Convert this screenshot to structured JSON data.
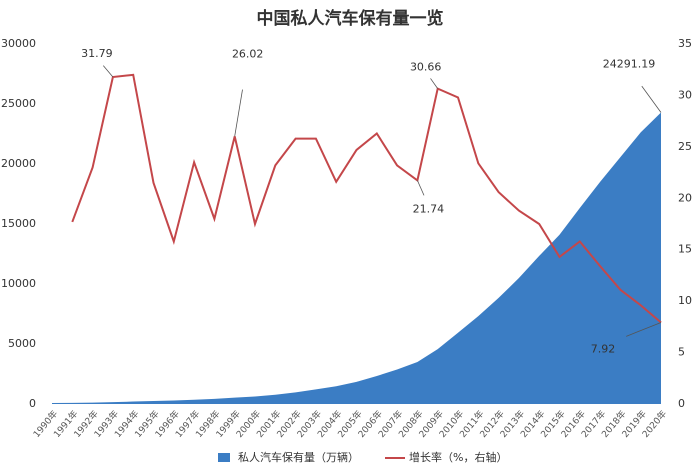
{
  "chart_data": {
    "type": "area-line",
    "title": "中国私人汽车保有量一览",
    "categories": [
      "1990年",
      "1991年",
      "1992年",
      "1993年",
      "1994年",
      "1995年",
      "1996年",
      "1997年",
      "1998年",
      "1999年",
      "2000年",
      "2001年",
      "2002年",
      "2003年",
      "2004年",
      "2005年",
      "2006年",
      "2007年",
      "2008年",
      "2009年",
      "2010年",
      "2011年",
      "2012年",
      "2013年",
      "2014年",
      "2015年",
      "2016年",
      "2017年",
      "2018年",
      "2019年",
      "2020年"
    ],
    "series": [
      {
        "name": "私人汽车保有量（万辆）",
        "type": "area",
        "color": "#3b7dc4",
        "values": [
          82,
          96,
          118,
          156,
          205,
          250,
          290,
          358,
          423,
          533,
          625,
          770,
          969,
          1219,
          1482,
          1848,
          2333,
          2876,
          3501,
          4575,
          5939,
          7327,
          8839,
          10502,
          12339,
          14099,
          16330,
          18515,
          20575,
          22635,
          24291.19
        ]
      },
      {
        "name": "增长率（%，右轴）",
        "type": "line",
        "color": "#c4474a",
        "axis": "y2",
        "values": [
          null,
          17.7,
          23,
          31.79,
          32,
          21.5,
          15.8,
          23.5,
          18,
          26.02,
          17.5,
          23.2,
          25.8,
          25.8,
          21.6,
          24.7,
          26.3,
          23.2,
          21.74,
          30.66,
          29.8,
          23.4,
          20.6,
          18.8,
          17.5,
          14.3,
          15.8,
          13.4,
          11.1,
          9.6,
          7.92
        ]
      }
    ],
    "ylim": [
      0,
      30000
    ],
    "yticks": [
      0,
      5000,
      10000,
      15000,
      20000,
      25000,
      30000
    ],
    "y2lim": [
      0,
      35
    ],
    "y2ticks": [
      0,
      5,
      10,
      15,
      20,
      25,
      30,
      35
    ],
    "legend": "bottom"
  }
}
